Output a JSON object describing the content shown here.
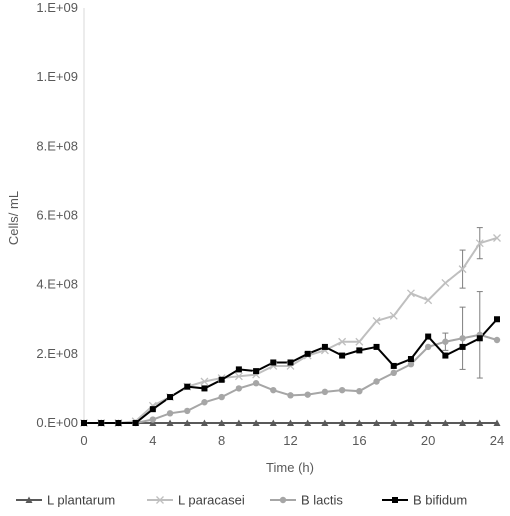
{
  "chart_data": {
    "type": "line",
    "xlabel": "Time (h)",
    "ylabel": "Cells/ mL",
    "xlim": [
      0,
      24
    ],
    "ylim": [
      0,
      1200000000
    ],
    "x_ticks": [
      0,
      4,
      8,
      12,
      16,
      20,
      24
    ],
    "x_tick_labels": [
      "0",
      "4",
      "8",
      "12",
      "16",
      "20",
      "24"
    ],
    "y_ticks": [
      0,
      200000000,
      400000000,
      600000000,
      800000000,
      1000000000,
      1200000000
    ],
    "y_tick_labels": [
      "0.E+00",
      "2.E+08",
      "4.E+08",
      "6.E+08",
      "8.E+08",
      "1.E+09",
      "1.E+09"
    ],
    "grid": false,
    "legend_position": "bottom",
    "x": [
      0,
      1,
      2,
      3,
      4,
      5,
      6,
      7,
      8,
      9,
      10,
      11,
      12,
      13,
      14,
      15,
      16,
      17,
      18,
      19,
      20,
      21,
      22,
      23,
      24
    ],
    "series": [
      {
        "name": "L plantarum",
        "color": "#595959",
        "marker": "triangle",
        "values": [
          0,
          0,
          0,
          0,
          0,
          0,
          0,
          0,
          0,
          0,
          0,
          0,
          0,
          0,
          0,
          0,
          0,
          0,
          0,
          0,
          0,
          0,
          0,
          0,
          0
        ]
      },
      {
        "name": "L paracasei",
        "color": "#bfbfbf",
        "marker": "x",
        "values": [
          0,
          0,
          0,
          5000000,
          50000000,
          75000000,
          105000000,
          120000000,
          130000000,
          135000000,
          140000000,
          165000000,
          165000000,
          195000000,
          210000000,
          235000000,
          235000000,
          295000000,
          310000000,
          375000000,
          355000000,
          405000000,
          445000000,
          520000000,
          535000000
        ],
        "error": [
          0,
          0,
          0,
          0,
          0,
          0,
          0,
          0,
          0,
          0,
          0,
          0,
          0,
          0,
          0,
          0,
          0,
          0,
          0,
          0,
          0,
          0,
          55000000,
          45000000,
          0
        ]
      },
      {
        "name": "B lactis",
        "color": "#a6a6a6",
        "marker": "circle",
        "values": [
          0,
          0,
          0,
          0,
          10000000,
          28000000,
          35000000,
          60000000,
          75000000,
          100000000,
          115000000,
          95000000,
          80000000,
          82000000,
          90000000,
          95000000,
          92000000,
          120000000,
          145000000,
          170000000,
          220000000,
          235000000,
          245000000,
          255000000,
          240000000
        ],
        "error": [
          0,
          0,
          0,
          0,
          0,
          0,
          0,
          0,
          0,
          0,
          0,
          0,
          0,
          0,
          0,
          0,
          0,
          0,
          0,
          0,
          0,
          25000000,
          90000000,
          125000000,
          0
        ]
      },
      {
        "name": "B bifidum",
        "color": "#000000",
        "marker": "square",
        "values": [
          0,
          0,
          0,
          0,
          40000000,
          75000000,
          105000000,
          100000000,
          125000000,
          155000000,
          150000000,
          175000000,
          175000000,
          200000000,
          220000000,
          195000000,
          210000000,
          220000000,
          165000000,
          185000000,
          250000000,
          195000000,
          220000000,
          245000000,
          300000000
        ],
        "error": [
          0,
          0,
          0,
          0,
          0,
          0,
          0,
          0,
          0,
          0,
          0,
          0,
          0,
          0,
          0,
          0,
          0,
          0,
          0,
          0,
          0,
          0,
          0,
          0,
          0
        ]
      }
    ]
  }
}
